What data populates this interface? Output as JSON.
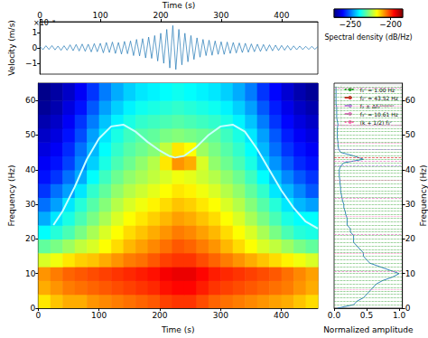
{
  "chart_data": [
    {
      "type": "line",
      "x_label": "Time (s)",
      "y_label": "Velocity (m/s)",
      "y_offset_label": "×10⁻⁸",
      "xlim": [
        0,
        460
      ],
      "xticks": [
        0,
        100,
        200,
        300,
        400
      ],
      "ylim": [
        -1.7,
        1.7
      ],
      "yticks": [
        {
          "value": -1,
          "label": "−1"
        },
        0,
        1
      ],
      "grid": false,
      "color": "#1f77b4",
      "x": [
        0,
        5,
        10,
        15,
        20,
        25,
        30,
        35,
        40,
        45,
        50,
        55,
        60,
        65,
        70,
        75,
        80,
        85,
        90,
        95,
        100,
        105,
        110,
        115,
        120,
        125,
        130,
        135,
        140,
        145,
        150,
        155,
        160,
        165,
        170,
        175,
        180,
        185,
        190,
        195,
        200,
        205,
        210,
        215,
        220,
        225,
        230,
        235,
        240,
        245,
        250,
        255,
        260,
        265,
        270,
        275,
        280,
        285,
        290,
        295,
        300,
        305,
        310,
        315,
        320,
        325,
        330,
        335,
        340,
        345,
        350,
        355,
        360,
        365,
        370,
        375,
        380,
        385,
        390,
        395,
        400,
        405,
        410,
        415,
        420,
        425,
        430,
        435,
        440,
        445,
        450,
        455,
        460
      ],
      "values": [
        0.1,
        -0.12,
        0.14,
        -0.1,
        0.15,
        -0.13,
        0.12,
        -0.16,
        0.14,
        -0.15,
        0.2,
        -0.18,
        0.22,
        -0.2,
        0.25,
        -0.22,
        0.24,
        -0.26,
        0.28,
        -0.25,
        0.3,
        -0.32,
        0.35,
        -0.3,
        0.38,
        -0.36,
        0.35,
        -0.4,
        0.42,
        -0.38,
        0.45,
        -0.5,
        0.55,
        -0.52,
        0.6,
        -0.65,
        0.7,
        -0.68,
        0.8,
        -0.85,
        0.95,
        -1.0,
        1.2,
        -1.3,
        1.45,
        -1.4,
        1.2,
        -1.1,
        0.95,
        -0.9,
        0.8,
        -0.75,
        0.65,
        -0.6,
        0.55,
        -0.5,
        0.5,
        -0.48,
        0.45,
        -0.42,
        0.4,
        -0.42,
        0.38,
        -0.36,
        0.35,
        -0.33,
        0.32,
        -0.3,
        0.3,
        -0.28,
        0.26,
        -0.25,
        0.24,
        -0.23,
        0.22,
        -0.2,
        0.2,
        -0.19,
        0.18,
        -0.17,
        0.16,
        -0.15,
        0.15,
        -0.14,
        0.13,
        -0.12,
        0.12,
        -0.11,
        0.1,
        -0.1,
        0.1,
        -0.09,
        0.08
      ]
    },
    {
      "type": "heatmap",
      "x_label": "Time (s)",
      "y_label": "Frequency (Hz)",
      "xlim": [
        0,
        460
      ],
      "xticks": [
        0,
        100,
        200,
        300,
        400
      ],
      "ylim": [
        0,
        65
      ],
      "yticks": [
        0,
        10,
        20,
        30,
        40,
        50,
        60
      ],
      "grid": false,
      "time_edges": [
        0,
        20,
        40,
        60,
        80,
        100,
        120,
        140,
        160,
        180,
        200,
        220,
        240,
        260,
        280,
        300,
        320,
        340,
        360,
        380,
        400,
        420,
        440,
        460
      ],
      "frequency_edges": [
        0,
        4,
        8,
        12,
        16,
        20,
        24,
        28,
        32,
        36,
        40,
        44,
        48,
        52,
        56,
        60,
        65
      ],
      "spectral_density": [
        [
          -215,
          -212,
          -210,
          -210,
          -208,
          -207,
          -206,
          -205,
          -204,
          -203,
          -201,
          -200,
          -200,
          -202,
          -204,
          -205,
          -206,
          -207,
          -208,
          -209,
          -210,
          -212,
          -214
        ],
        [
          -210,
          -208,
          -206,
          -205,
          -204,
          -203,
          -202,
          -201,
          -200,
          -199,
          -197,
          -196,
          -196,
          -198,
          -200,
          -201,
          -202,
          -203,
          -204,
          -205,
          -206,
          -208,
          -210
        ],
        [
          -208,
          -206,
          -204,
          -203,
          -202,
          -201,
          -200,
          -199,
          -198,
          -197,
          -195,
          -194,
          -194,
          -196,
          -198,
          -199,
          -200,
          -201,
          -202,
          -203,
          -205,
          -207,
          -209
        ],
        [
          -220,
          -218,
          -215,
          -213,
          -212,
          -210,
          -208,
          -206,
          -205,
          -203,
          -201,
          -200,
          -200,
          -202,
          -204,
          -206,
          -208,
          -210,
          -212,
          -214,
          -216,
          -218,
          -220
        ],
        [
          -230,
          -228,
          -225,
          -222,
          -220,
          -217,
          -214,
          -211,
          -209,
          -207,
          -205,
          -203,
          -204,
          -206,
          -208,
          -211,
          -214,
          -217,
          -220,
          -222,
          -225,
          -228,
          -230
        ],
        [
          -238,
          -235,
          -232,
          -228,
          -224,
          -220,
          -217,
          -214,
          -212,
          -210,
          -208,
          -206,
          -207,
          -209,
          -211,
          -214,
          -217,
          -220,
          -224,
          -228,
          -232,
          -235,
          -236
        ],
        [
          -245,
          -240,
          -236,
          -232,
          -228,
          -224,
          -220,
          -217,
          -215,
          -213,
          -211,
          -209,
          -210,
          -212,
          -214,
          -217,
          -220,
          -224,
          -228,
          -232,
          -236,
          -238,
          -238
        ],
        [
          -250,
          -246,
          -240,
          -235,
          -231,
          -227,
          -223,
          -220,
          -218,
          -216,
          -214,
          -212,
          -213,
          -215,
          -217,
          -220,
          -223,
          -227,
          -231,
          -235,
          -240,
          -244,
          -246
        ],
        [
          -255,
          -250,
          -246,
          -240,
          -234,
          -230,
          -226,
          -223,
          -221,
          -219,
          -217,
          -215,
          -216,
          -218,
          -220,
          -223,
          -226,
          -230,
          -234,
          -240,
          -244,
          -248,
          -252
        ],
        [
          -258,
          -255,
          -250,
          -245,
          -238,
          -233,
          -229,
          -226,
          -224,
          -222,
          -220,
          -218,
          -219,
          -221,
          -223,
          -226,
          -229,
          -233,
          -238,
          -243,
          -248,
          -252,
          -255
        ],
        [
          -260,
          -258,
          -254,
          -248,
          -242,
          -236,
          -232,
          -229,
          -226,
          -223,
          -215,
          -208,
          -210,
          -220,
          -226,
          -229,
          -232,
          -236,
          -242,
          -247,
          -252,
          -256,
          -258
        ],
        [
          -262,
          -260,
          -256,
          -250,
          -244,
          -238,
          -234,
          -231,
          -229,
          -227,
          -222,
          -215,
          -217,
          -225,
          -228,
          -231,
          -234,
          -238,
          -244,
          -250,
          -255,
          -258,
          -260
        ],
        [
          -264,
          -262,
          -258,
          -253,
          -246,
          -240,
          -236,
          -233,
          -231,
          -230,
          -228,
          -227,
          -228,
          -229,
          -230,
          -233,
          -236,
          -240,
          -246,
          -252,
          -257,
          -260,
          -262
        ],
        [
          -266,
          -264,
          -260,
          -255,
          -249,
          -243,
          -239,
          -236,
          -234,
          -233,
          -232,
          -231,
          -232,
          -233,
          -234,
          -236,
          -239,
          -243,
          -249,
          -255,
          -259,
          -262,
          -264
        ],
        [
          -268,
          -266,
          -262,
          -258,
          -252,
          -246,
          -242,
          -239,
          -237,
          -236,
          -235,
          -234,
          -235,
          -236,
          -237,
          -239,
          -242,
          -246,
          -252,
          -257,
          -261,
          -264,
          -266
        ],
        [
          -269,
          -267,
          -264,
          -260,
          -255,
          -249,
          -245,
          -242,
          -240,
          -239,
          -238,
          -237,
          -238,
          -239,
          -240,
          -242,
          -245,
          -249,
          -255,
          -259,
          -263,
          -266,
          -268
        ]
      ],
      "colorbar": {
        "label": "Spectral density (dB/Hz)",
        "range": [
          -270,
          -185
        ],
        "ticks": [
          {
            "value": -250,
            "label": "−250"
          },
          {
            "value": -200,
            "label": "−200"
          }
        ]
      },
      "series": [
        {
          "type": "line",
          "color": "#c8ffff",
          "x": [
            25,
            40,
            60,
            80,
            100,
            120,
            140,
            160,
            180,
            200,
            215,
            225,
            240,
            260,
            280,
            300,
            320,
            340,
            360,
            380,
            400,
            420,
            440,
            460
          ],
          "values": [
            24,
            28,
            35,
            43,
            49,
            52.5,
            53,
            51,
            48,
            45.5,
            44,
            43.5,
            44,
            46.5,
            50,
            52.5,
            53,
            51,
            46,
            40,
            34,
            29,
            25,
            23
          ]
        }
      ]
    },
    {
      "type": "line",
      "x_label": "Normalized amplitude",
      "y_label": "Frequency (Hz)",
      "xlim": [
        0,
        1.05
      ],
      "xticks": [
        {
          "value": 0,
          "label": "0.0"
        },
        {
          "value": 0.5,
          "label": "0.5"
        },
        {
          "value": 1,
          "label": "1.0"
        }
      ],
      "ylim": [
        0,
        65
      ],
      "yticks": [
        0,
        10,
        20,
        30,
        40,
        50,
        60
      ],
      "grid": false,
      "legend": "upper right",
      "series": [
        {
          "type": "line",
          "color": "#1f77b4",
          "line_style": "solid",
          "x": [
            0.05,
            0.3,
            0.35,
            0.45,
            0.5,
            0.55,
            0.6,
            0.65,
            0.75,
            0.9,
            1.0,
            0.85,
            0.7,
            0.55,
            0.5,
            0.45,
            0.45,
            0.4,
            0.35,
            0.3,
            0.3,
            0.3,
            0.25,
            0.25,
            0.2,
            0.2,
            0.2,
            0.18,
            0.17,
            0.15,
            0.15,
            0.13,
            0.12,
            0.11,
            0.1,
            0.1,
            0.09,
            0.09,
            0.08,
            0.08,
            0.08,
            0.1,
            0.15,
            0.45,
            0.3,
            0.1,
            0.07,
            0.06,
            0.06,
            0.05,
            0.05,
            0.05,
            0.05,
            0.06,
            0.05,
            0.04,
            0.04,
            0.04,
            0.04,
            0.03,
            0.03,
            0.03,
            0.03,
            0.03,
            0.03
          ],
          "values": [
            0,
            1,
            2,
            3,
            4,
            5,
            6,
            7,
            8,
            9,
            10,
            11,
            12,
            13,
            14,
            15,
            16,
            17,
            18,
            19,
            20,
            21,
            22,
            23,
            24,
            25,
            26,
            27,
            28,
            29,
            30,
            31,
            32,
            33,
            34,
            35,
            36,
            37,
            38,
            39,
            40,
            41,
            42,
            43,
            44,
            45,
            46,
            47,
            48,
            49,
            50,
            51,
            52,
            53,
            54,
            55,
            56,
            57,
            58,
            59,
            60,
            61,
            62,
            63,
            64
          ]
        },
        {
          "type": "hline",
          "name": "f₁ᶜ = 1.00 Hz",
          "color": "#2ca02c",
          "line_style": "dotted",
          "values": [
            1,
            2,
            3,
            4,
            5,
            6,
            7,
            8,
            9,
            10,
            11,
            12,
            13,
            14,
            15,
            16,
            17,
            18,
            19,
            20,
            21,
            22,
            23,
            24,
            25,
            26,
            27,
            28,
            29,
            30,
            31,
            32,
            33,
            34,
            35,
            36,
            37,
            38,
            39,
            40,
            41,
            42,
            43,
            44,
            45,
            46,
            47,
            48,
            49,
            50,
            51,
            52,
            53,
            54,
            55,
            56,
            57,
            58,
            59,
            60,
            61,
            62,
            63,
            64
          ]
        },
        {
          "type": "hline",
          "name": "f₂ᶜ = 43.52 Hz",
          "color": "#d62728",
          "line_style": "dashed",
          "values": [
            43.52
          ]
        },
        {
          "type": "hline",
          "name": "f₂ ± Δf₂ᴰᵒᵖᵖˡᵉʳ",
          "color": "#aa88dd",
          "line_style": "dashed",
          "values": [
            41.2,
            45.8
          ]
        },
        {
          "type": "hline",
          "name": "f₃ᶜ = 10.61 Hz",
          "color": "#e377c2",
          "line_style": "dashed",
          "values": [
            10.61,
            21.22,
            31.83,
            42.44,
            53.05,
            63.66
          ]
        },
        {
          "type": "hline",
          "name": "(k + 1/2) f₃ᶜ",
          "color": "#ff69b4",
          "line_style": "dotted",
          "values": [
            5.305,
            15.915,
            26.525,
            37.135,
            47.745,
            58.355
          ]
        }
      ]
    }
  ]
}
